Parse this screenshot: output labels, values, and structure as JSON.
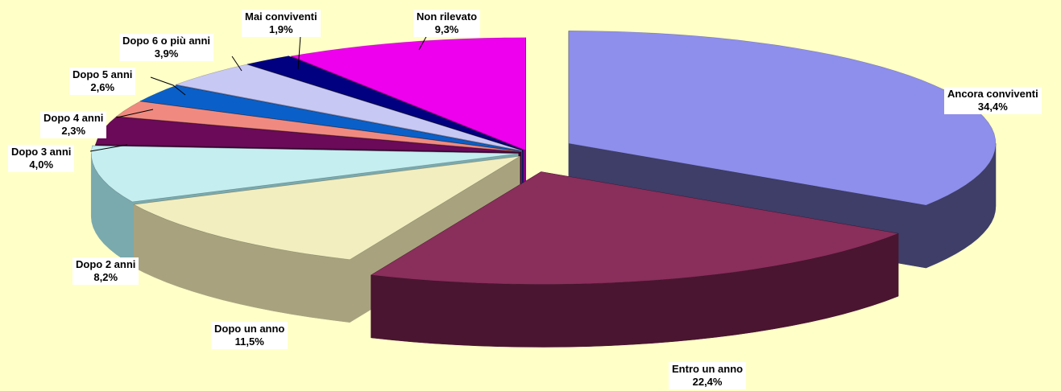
{
  "chart_data": {
    "type": "pie",
    "style": "3d-exploded",
    "title": "",
    "legend": "none",
    "slices": [
      {
        "name": "Ancora conviventi",
        "value": 34.4,
        "label": "34,4%",
        "color": "#8E8EEC",
        "side": "#3E3E68"
      },
      {
        "name": "Entro un anno",
        "value": 22.4,
        "label": "22,4%",
        "color": "#8A2E5C",
        "side": "#4A1530"
      },
      {
        "name": "Dopo un anno",
        "value": 11.5,
        "label": "11,5%",
        "color": "#F2EEC0",
        "side": "#A8A37E"
      },
      {
        "name": "Dopo 2 anni",
        "value": 8.2,
        "label": "8,2%",
        "color": "#C4EEF0",
        "side": "#7AAAAE"
      },
      {
        "name": "Dopo 3 anni",
        "value": 4.0,
        "label": "4,0%",
        "color": "#6A0A58",
        "side": "#3A0430"
      },
      {
        "name": "Dopo 4 anni",
        "value": 2.3,
        "label": "2,3%",
        "color": "#F08A80",
        "side": "#A0504A"
      },
      {
        "name": "Dopo 5 anni",
        "value": 2.6,
        "label": "2,6%",
        "color": "#0A60C8",
        "side": "#053A78"
      },
      {
        "name": "Dopo 6 o più anni",
        "value": 3.9,
        "label": "3,9%",
        "color": "#C8C8F4",
        "side": "#8080A8"
      },
      {
        "name": "Mai conviventi",
        "value": 1.9,
        "label": "1,9%",
        "color": "#000080",
        "side": "#00003C"
      },
      {
        "name": "Non rilevato",
        "value": 9.3,
        "label": "9,3%",
        "color": "#EE00EE",
        "side": "#8A008A"
      }
    ]
  }
}
